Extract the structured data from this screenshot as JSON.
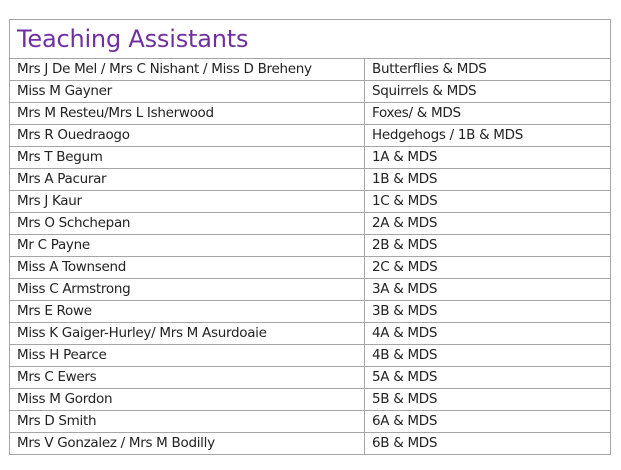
{
  "title": "Teaching Assistants",
  "title_color": "#7030a0",
  "rows": [
    {
      "name": "Mrs J De Mel / Mrs C Nishant / Miss D Breheny",
      "class": "Butterflies & MDS"
    },
    {
      "name": "Miss M Gayner",
      "class": "Squirrels & MDS"
    },
    {
      "name": "Mrs M Resteu/Mrs L Isherwood",
      "class": "Foxes/ & MDS"
    },
    {
      "name": "Mrs R Ouedraogo",
      "class": "Hedgehogs / 1B & MDS"
    },
    {
      "name": "Mrs T Begum",
      "class": "1A & MDS"
    },
    {
      "name": "Mrs A Pacurar",
      "class": "1B & MDS"
    },
    {
      "name": "Mrs J Kaur",
      "class": "1C & MDS"
    },
    {
      "name": "Mrs O Schchepan",
      "class": "2A & MDS"
    },
    {
      "name": "Mr C Payne",
      "class": "2B & MDS"
    },
    {
      "name": "Miss A Townsend",
      "class": "2C & MDS"
    },
    {
      "name": "Miss C Armstrong",
      "class": "3A & MDS"
    },
    {
      "name": "Mrs E Rowe",
      "class": "3B & MDS"
    },
    {
      "name": "Miss K Gaiger-Hurley/ Mrs M Asurdoaie",
      "class": "4A & MDS"
    },
    {
      "name": "Miss H Pearce",
      "class": "4B & MDS"
    },
    {
      "name": "Mrs C Ewers",
      "class": "5A & MDS"
    },
    {
      "name": "Miss M Gordon",
      "class": "5B & MDS"
    },
    {
      "name": "Mrs D Smith",
      "class": "6A & MDS"
    },
    {
      "name": "Mrs V Gonzalez / Mrs M Bodilly",
      "class": "6B & MDS"
    }
  ]
}
